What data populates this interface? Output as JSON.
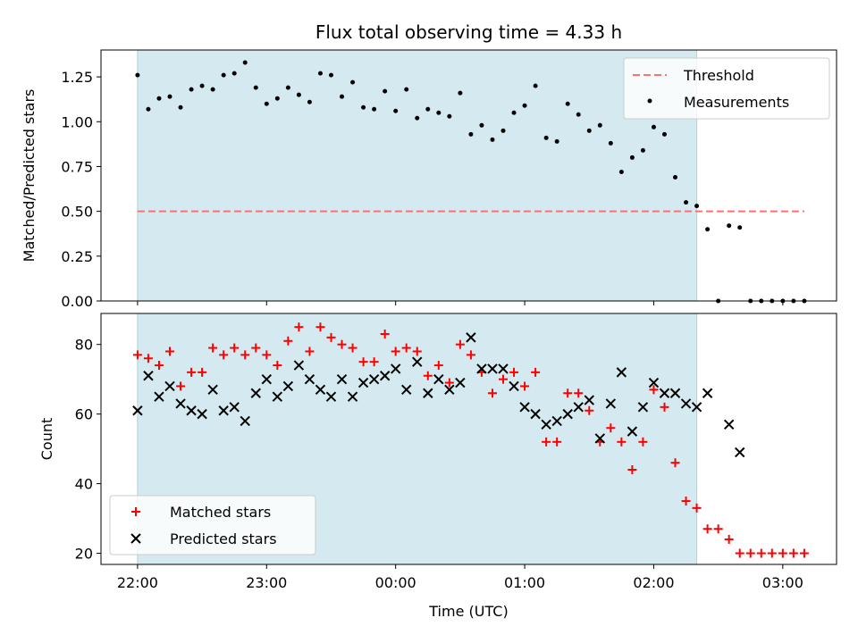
{
  "chart_data": [
    {
      "type": "scatter",
      "title": "Flux total observing time = 4.33 h",
      "xlabel": "",
      "ylabel": "Matched/Predicted stars",
      "xlim": [
        "21:43",
        "03:25"
      ],
      "ylim": [
        0,
        1.4
      ],
      "yticks": [
        "0.00",
        "0.25",
        "0.50",
        "0.75",
        "1.00",
        "1.25"
      ],
      "shaded_span": [
        "22:00",
        "02:20"
      ],
      "legend_position": "upper right",
      "threshold": {
        "name": "Threshold",
        "value": 0.5,
        "x_start": "22:00",
        "x_end": "03:10",
        "color": "#ff7070"
      },
      "series": [
        {
          "name": "Measurements",
          "color": "#000000",
          "points": [
            {
              "x": "22:00",
              "y": 1.26
            },
            {
              "x": "22:05",
              "y": 1.07
            },
            {
              "x": "22:10",
              "y": 1.13
            },
            {
              "x": "22:15",
              "y": 1.14
            },
            {
              "x": "22:20",
              "y": 1.08
            },
            {
              "x": "22:25",
              "y": 1.18
            },
            {
              "x": "22:30",
              "y": 1.2
            },
            {
              "x": "22:35",
              "y": 1.18
            },
            {
              "x": "22:40",
              "y": 1.26
            },
            {
              "x": "22:45",
              "y": 1.27
            },
            {
              "x": "22:50",
              "y": 1.33
            },
            {
              "x": "22:55",
              "y": 1.19
            },
            {
              "x": "23:00",
              "y": 1.1
            },
            {
              "x": "23:05",
              "y": 1.13
            },
            {
              "x": "23:10",
              "y": 1.19
            },
            {
              "x": "23:15",
              "y": 1.15
            },
            {
              "x": "23:20",
              "y": 1.11
            },
            {
              "x": "23:25",
              "y": 1.27
            },
            {
              "x": "23:30",
              "y": 1.26
            },
            {
              "x": "23:35",
              "y": 1.14
            },
            {
              "x": "23:40",
              "y": 1.22
            },
            {
              "x": "23:45",
              "y": 1.08
            },
            {
              "x": "23:50",
              "y": 1.07
            },
            {
              "x": "23:55",
              "y": 1.17
            },
            {
              "x": "00:00",
              "y": 1.06
            },
            {
              "x": "00:05",
              "y": 1.18
            },
            {
              "x": "00:10",
              "y": 1.02
            },
            {
              "x": "00:15",
              "y": 1.07
            },
            {
              "x": "00:20",
              "y": 1.05
            },
            {
              "x": "00:25",
              "y": 1.03
            },
            {
              "x": "00:30",
              "y": 1.16
            },
            {
              "x": "00:35",
              "y": 0.93
            },
            {
              "x": "00:40",
              "y": 0.98
            },
            {
              "x": "00:45",
              "y": 0.9
            },
            {
              "x": "00:50",
              "y": 0.95
            },
            {
              "x": "00:55",
              "y": 1.05
            },
            {
              "x": "01:00",
              "y": 1.09
            },
            {
              "x": "01:05",
              "y": 1.2
            },
            {
              "x": "01:10",
              "y": 0.91
            },
            {
              "x": "01:15",
              "y": 0.89
            },
            {
              "x": "01:20",
              "y": 1.1
            },
            {
              "x": "01:25",
              "y": 1.04
            },
            {
              "x": "01:30",
              "y": 0.95
            },
            {
              "x": "01:35",
              "y": 0.98
            },
            {
              "x": "01:40",
              "y": 0.88
            },
            {
              "x": "01:45",
              "y": 0.72
            },
            {
              "x": "01:50",
              "y": 0.8
            },
            {
              "x": "01:55",
              "y": 0.84
            },
            {
              "x": "02:00",
              "y": 0.97
            },
            {
              "x": "02:05",
              "y": 0.93
            },
            {
              "x": "02:10",
              "y": 0.69
            },
            {
              "x": "02:15",
              "y": 0.55
            },
            {
              "x": "02:20",
              "y": 0.53
            },
            {
              "x": "02:25",
              "y": 0.4
            },
            {
              "x": "02:30",
              "y": 0.0
            },
            {
              "x": "02:35",
              "y": 0.42
            },
            {
              "x": "02:40",
              "y": 0.41
            },
            {
              "x": "02:45",
              "y": 0.0
            },
            {
              "x": "02:50",
              "y": 0.0
            },
            {
              "x": "02:55",
              "y": 0.0
            },
            {
              "x": "03:00",
              "y": 0.0
            },
            {
              "x": "03:05",
              "y": 0.0
            },
            {
              "x": "03:10",
              "y": 0.0
            }
          ]
        }
      ]
    },
    {
      "type": "scatter",
      "xlabel": "Time (UTC)",
      "ylabel": "Count",
      "xlim": [
        "21:43",
        "03:25"
      ],
      "ylim": [
        16.8,
        88.9
      ],
      "xticks": [
        "22:00",
        "23:00",
        "00:00",
        "01:00",
        "02:00",
        "03:00"
      ],
      "yticks": [
        "20",
        "40",
        "60",
        "80"
      ],
      "shaded_span": [
        "22:00",
        "02:20"
      ],
      "legend_position": "lower left",
      "series": [
        {
          "name": "Matched stars",
          "color": "#ff0000",
          "marker": "+",
          "points": [
            {
              "x": "22:00",
              "y": 77
            },
            {
              "x": "22:05",
              "y": 76
            },
            {
              "x": "22:10",
              "y": 74
            },
            {
              "x": "22:15",
              "y": 78
            },
            {
              "x": "22:20",
              "y": 68
            },
            {
              "x": "22:25",
              "y": 72
            },
            {
              "x": "22:30",
              "y": 72
            },
            {
              "x": "22:35",
              "y": 79
            },
            {
              "x": "22:40",
              "y": 77
            },
            {
              "x": "22:45",
              "y": 79
            },
            {
              "x": "22:50",
              "y": 77
            },
            {
              "x": "22:55",
              "y": 79
            },
            {
              "x": "23:00",
              "y": 77
            },
            {
              "x": "23:05",
              "y": 74
            },
            {
              "x": "23:10",
              "y": 81
            },
            {
              "x": "23:15",
              "y": 85
            },
            {
              "x": "23:20",
              "y": 78
            },
            {
              "x": "23:25",
              "y": 85
            },
            {
              "x": "23:30",
              "y": 82
            },
            {
              "x": "23:35",
              "y": 80
            },
            {
              "x": "23:40",
              "y": 79
            },
            {
              "x": "23:45",
              "y": 75
            },
            {
              "x": "23:50",
              "y": 75
            },
            {
              "x": "23:55",
              "y": 83
            },
            {
              "x": "00:00",
              "y": 78
            },
            {
              "x": "00:05",
              "y": 79
            },
            {
              "x": "00:10",
              "y": 78
            },
            {
              "x": "00:15",
              "y": 71
            },
            {
              "x": "00:20",
              "y": 74
            },
            {
              "x": "00:25",
              "y": 69
            },
            {
              "x": "00:30",
              "y": 80
            },
            {
              "x": "00:35",
              "y": 77
            },
            {
              "x": "00:40",
              "y": 72
            },
            {
              "x": "00:45",
              "y": 66
            },
            {
              "x": "00:50",
              "y": 70
            },
            {
              "x": "00:55",
              "y": 72
            },
            {
              "x": "01:00",
              "y": 68
            },
            {
              "x": "01:05",
              "y": 72
            },
            {
              "x": "01:10",
              "y": 52
            },
            {
              "x": "01:15",
              "y": 52
            },
            {
              "x": "01:20",
              "y": 66
            },
            {
              "x": "01:25",
              "y": 66
            },
            {
              "x": "01:30",
              "y": 61
            },
            {
              "x": "01:35",
              "y": 52
            },
            {
              "x": "01:40",
              "y": 56
            },
            {
              "x": "01:45",
              "y": 52
            },
            {
              "x": "01:50",
              "y": 44
            },
            {
              "x": "01:55",
              "y": 52
            },
            {
              "x": "02:00",
              "y": 67
            },
            {
              "x": "02:05",
              "y": 62
            },
            {
              "x": "02:10",
              "y": 46
            },
            {
              "x": "02:15",
              "y": 35
            },
            {
              "x": "02:20",
              "y": 33
            },
            {
              "x": "02:25",
              "y": 27
            },
            {
              "x": "02:30",
              "y": 27
            },
            {
              "x": "02:35",
              "y": 24
            },
            {
              "x": "02:40",
              "y": 20
            },
            {
              "x": "02:45",
              "y": 20
            },
            {
              "x": "02:50",
              "y": 20
            },
            {
              "x": "02:55",
              "y": 20
            },
            {
              "x": "03:00",
              "y": 20
            },
            {
              "x": "03:05",
              "y": 20
            },
            {
              "x": "03:10",
              "y": 20
            }
          ]
        },
        {
          "name": "Predicted stars",
          "color": "#000000",
          "marker": "x",
          "points": [
            {
              "x": "22:00",
              "y": 61
            },
            {
              "x": "22:05",
              "y": 71
            },
            {
              "x": "22:10",
              "y": 65
            },
            {
              "x": "22:15",
              "y": 68
            },
            {
              "x": "22:20",
              "y": 63
            },
            {
              "x": "22:25",
              "y": 61
            },
            {
              "x": "22:30",
              "y": 60
            },
            {
              "x": "22:35",
              "y": 67
            },
            {
              "x": "22:40",
              "y": 61
            },
            {
              "x": "22:45",
              "y": 62
            },
            {
              "x": "22:50",
              "y": 58
            },
            {
              "x": "22:55",
              "y": 66
            },
            {
              "x": "23:00",
              "y": 70
            },
            {
              "x": "23:05",
              "y": 65
            },
            {
              "x": "23:10",
              "y": 68
            },
            {
              "x": "23:15",
              "y": 74
            },
            {
              "x": "23:20",
              "y": 70
            },
            {
              "x": "23:25",
              "y": 67
            },
            {
              "x": "23:30",
              "y": 65
            },
            {
              "x": "23:35",
              "y": 70
            },
            {
              "x": "23:40",
              "y": 65
            },
            {
              "x": "23:45",
              "y": 69
            },
            {
              "x": "23:50",
              "y": 70
            },
            {
              "x": "23:55",
              "y": 71
            },
            {
              "x": "00:00",
              "y": 73
            },
            {
              "x": "00:05",
              "y": 67
            },
            {
              "x": "00:10",
              "y": 75
            },
            {
              "x": "00:15",
              "y": 66
            },
            {
              "x": "00:20",
              "y": 70
            },
            {
              "x": "00:25",
              "y": 67
            },
            {
              "x": "00:30",
              "y": 69
            },
            {
              "x": "00:35",
              "y": 82
            },
            {
              "x": "00:40",
              "y": 73
            },
            {
              "x": "00:45",
              "y": 73
            },
            {
              "x": "00:50",
              "y": 73
            },
            {
              "x": "00:55",
              "y": 68
            },
            {
              "x": "01:00",
              "y": 62
            },
            {
              "x": "01:05",
              "y": 60
            },
            {
              "x": "01:10",
              "y": 57
            },
            {
              "x": "01:15",
              "y": 58
            },
            {
              "x": "01:20",
              "y": 60
            },
            {
              "x": "01:25",
              "y": 62
            },
            {
              "x": "01:30",
              "y": 64
            },
            {
              "x": "01:35",
              "y": 53
            },
            {
              "x": "01:40",
              "y": 63
            },
            {
              "x": "01:45",
              "y": 72
            },
            {
              "x": "01:50",
              "y": 55
            },
            {
              "x": "01:55",
              "y": 62
            },
            {
              "x": "02:00",
              "y": 69
            },
            {
              "x": "02:05",
              "y": 66
            },
            {
              "x": "02:10",
              "y": 66
            },
            {
              "x": "02:15",
              "y": 63
            },
            {
              "x": "02:20",
              "y": 62
            },
            {
              "x": "02:25",
              "y": 66
            },
            {
              "x": "02:35",
              "y": 57
            },
            {
              "x": "02:40",
              "y": 49
            }
          ]
        }
      ]
    }
  ],
  "colors": {
    "shading": "#d4eaf0",
    "shading_edge": "#a9d3df",
    "threshold_line": "#ff7070",
    "matched_marker": "#ff0000",
    "predicted_marker": "#000000",
    "measurement_marker": "#000000"
  }
}
